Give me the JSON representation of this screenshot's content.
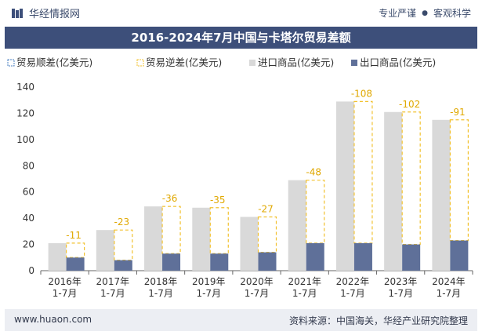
{
  "header": {
    "brand": "华经情报网",
    "tagline_left": "专业严谨",
    "tagline_right": "客观科学",
    "title": "2016-2024年7月中国与卡塔尔贸易差额"
  },
  "footer": {
    "website": "www.huaon.com",
    "source": "资料来源：中国海关，华经产业研究院整理"
  },
  "colors": {
    "surplus_border": "#4a7fc0",
    "deficit_border": "#f2c12e",
    "import_fill": "#d9d9d9",
    "export_fill": "#5f7099",
    "header_bg": "#3d4f7a"
  },
  "chart_data": {
    "type": "bar",
    "title": "2016-2024年7月中国与卡塔尔贸易差额",
    "categories": [
      "2016年\n1-7月",
      "2017年\n1-7月",
      "2018年\n1-7月",
      "2019年\n1-7月",
      "2020年\n1-7月",
      "2021年\n1-7月",
      "2022年\n1-7月",
      "2023年\n1-7月",
      "2024年\n1-7月"
    ],
    "ylim": [
      0,
      140
    ],
    "yticks": [
      0,
      20,
      40,
      60,
      80,
      100,
      120,
      140
    ],
    "legend": [
      "贸易顺差(亿美元)",
      "贸易逆差(亿美元)",
      "进口商品(亿美元)",
      "出口商品(亿美元)"
    ],
    "series": [
      {
        "name": "进口商品(亿美元)",
        "values": [
          21,
          31,
          49,
          48,
          41,
          69,
          129,
          121,
          115
        ]
      },
      {
        "name": "出口商品(亿美元)",
        "values": [
          10,
          8,
          13,
          13,
          14,
          21,
          21,
          20,
          23
        ]
      },
      {
        "name": "贸易逆差(亿美元)",
        "values": [
          -11,
          -23,
          -36,
          -35,
          -27,
          -48,
          -108,
          -102,
          -91
        ]
      },
      {
        "name": "贸易顺差(亿美元)",
        "values": [
          0,
          0,
          0,
          0,
          0,
          0,
          0,
          0,
          0
        ]
      }
    ]
  }
}
